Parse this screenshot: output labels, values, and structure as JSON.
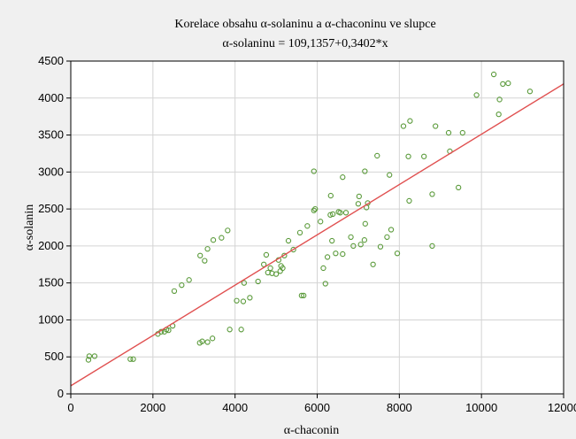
{
  "chart_data": {
    "type": "scatter",
    "title": "Korelace obsahu α-solaninu a α-chaconinu ve slupce",
    "subtitle": "α-solaninu = 109,1357+0,3402*x",
    "xlabel": "α-chaconin",
    "ylabel": "α-solanin",
    "xlim": [
      0,
      12000
    ],
    "ylim": [
      0,
      4500
    ],
    "x_ticks": [
      "0",
      "2000",
      "4000",
      "6000",
      "8000",
      "10000",
      "12000"
    ],
    "y_ticks": [
      "0",
      "500",
      "1000",
      "1500",
      "2000",
      "2500",
      "3000",
      "3500",
      "4000",
      "4500"
    ],
    "x_tick_values": [
      0,
      2000,
      4000,
      6000,
      8000,
      10000,
      12000
    ],
    "y_tick_values": [
      0,
      500,
      1000,
      1500,
      2000,
      2500,
      3000,
      3500,
      4000,
      4500
    ],
    "grid": true,
    "regression": {
      "intercept": 109.1357,
      "slope": 0.3402
    },
    "colors": {
      "points": "#5a9a3a",
      "line": "#e05050",
      "grid": "#d4d4d4",
      "plot_bg": "#ffffff",
      "background": "#f0f0f0"
    },
    "points": [
      [
        430,
        460
      ],
      [
        450,
        510
      ],
      [
        580,
        510
      ],
      [
        1450,
        470
      ],
      [
        1520,
        470
      ],
      [
        2120,
        810
      ],
      [
        2200,
        840
      ],
      [
        2280,
        840
      ],
      [
        2330,
        870
      ],
      [
        2380,
        860
      ],
      [
        2480,
        920
      ],
      [
        2520,
        1390
      ],
      [
        2700,
        1470
      ],
      [
        2880,
        1540
      ],
      [
        3140,
        690
      ],
      [
        3200,
        710
      ],
      [
        3330,
        700
      ],
      [
        3450,
        750
      ],
      [
        3870,
        870
      ],
      [
        4150,
        870
      ],
      [
        3150,
        1870
      ],
      [
        3260,
        1800
      ],
      [
        3330,
        1960
      ],
      [
        3470,
        2080
      ],
      [
        3670,
        2110
      ],
      [
        3820,
        2210
      ],
      [
        4040,
        1260
      ],
      [
        4200,
        1250
      ],
      [
        4220,
        1500
      ],
      [
        4360,
        1300
      ],
      [
        4560,
        1520
      ],
      [
        4700,
        1750
      ],
      [
        4760,
        1880
      ],
      [
        4800,
        1640
      ],
      [
        4860,
        1700
      ],
      [
        4900,
        1630
      ],
      [
        5000,
        1620
      ],
      [
        5060,
        1810
      ],
      [
        5100,
        1660
      ],
      [
        5120,
        1730
      ],
      [
        5160,
        1700
      ],
      [
        5200,
        1870
      ],
      [
        5300,
        2070
      ],
      [
        5420,
        1950
      ],
      [
        5580,
        2180
      ],
      [
        5620,
        1330
      ],
      [
        5670,
        1330
      ],
      [
        5760,
        2270
      ],
      [
        5920,
        3010
      ],
      [
        5920,
        2480
      ],
      [
        5950,
        2500
      ],
      [
        6080,
        2330
      ],
      [
        6150,
        1700
      ],
      [
        6200,
        1490
      ],
      [
        6250,
        1850
      ],
      [
        6320,
        2420
      ],
      [
        6330,
        2680
      ],
      [
        6360,
        2070
      ],
      [
        6380,
        2430
      ],
      [
        6450,
        1900
      ],
      [
        6520,
        2460
      ],
      [
        6560,
        2450
      ],
      [
        6620,
        2930
      ],
      [
        6620,
        1890
      ],
      [
        6700,
        2450
      ],
      [
        6820,
        2120
      ],
      [
        6880,
        2000
      ],
      [
        7000,
        2570
      ],
      [
        7020,
        2670
      ],
      [
        7060,
        2020
      ],
      [
        7150,
        2080
      ],
      [
        7160,
        3010
      ],
      [
        7170,
        2300
      ],
      [
        7200,
        2520
      ],
      [
        7230,
        2580
      ],
      [
        7360,
        1750
      ],
      [
        7460,
        3220
      ],
      [
        7540,
        1990
      ],
      [
        7700,
        2120
      ],
      [
        7760,
        2960
      ],
      [
        7800,
        2220
      ],
      [
        7950,
        1900
      ],
      [
        8100,
        3620
      ],
      [
        8220,
        3210
      ],
      [
        8240,
        2610
      ],
      [
        8260,
        3690
      ],
      [
        8600,
        3210
      ],
      [
        8800,
        2000
      ],
      [
        8800,
        2700
      ],
      [
        8880,
        3620
      ],
      [
        9200,
        3530
      ],
      [
        9230,
        3280
      ],
      [
        9440,
        2790
      ],
      [
        9540,
        3530
      ],
      [
        9880,
        4040
      ],
      [
        10300,
        4320
      ],
      [
        10420,
        3780
      ],
      [
        10440,
        3980
      ],
      [
        10520,
        4190
      ],
      [
        10650,
        4200
      ],
      [
        11180,
        4090
      ]
    ]
  }
}
